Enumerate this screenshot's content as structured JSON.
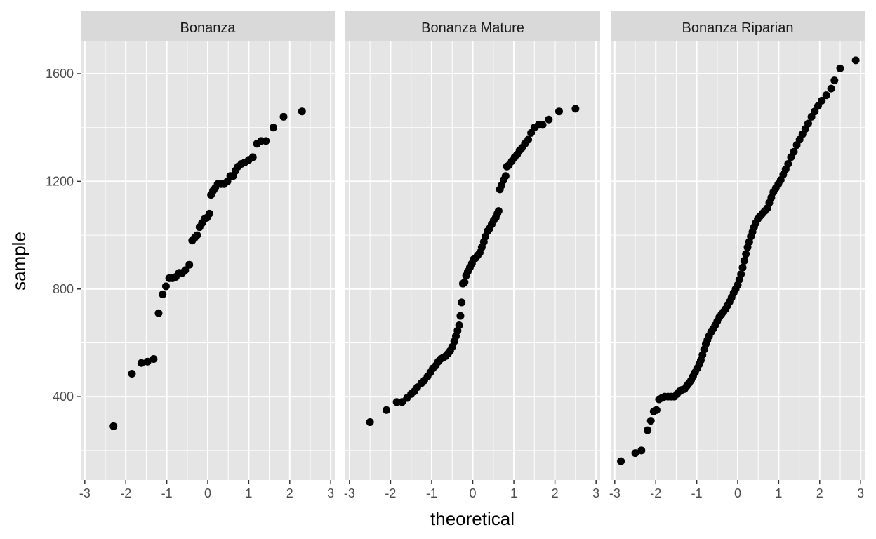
{
  "chart_data": {
    "type": "scatter",
    "xlabel": "theoretical",
    "ylabel": "sample",
    "xlim": [
      -3.1,
      3.1
    ],
    "ylim": [
      90,
      1720
    ],
    "x_ticks": [
      -3,
      -2,
      -1,
      0,
      1,
      2,
      3
    ],
    "x_tick_labels": [
      "-3",
      "-2",
      "-1",
      "0",
      "1",
      "2",
      "3"
    ],
    "y_ticks": [
      400,
      800,
      1200,
      1600
    ],
    "y_tick_labels": [
      "400",
      "800",
      "1200",
      "1600"
    ],
    "grid": true,
    "colors": {
      "panel_bg": "#e5e5e5",
      "strip_bg": "#d9d9d9",
      "grid": "#ffffff",
      "point": "#000000"
    },
    "panels": [
      {
        "title": "Bonanza",
        "points": [
          [
            -2.3,
            290
          ],
          [
            -1.85,
            485
          ],
          [
            -1.62,
            525
          ],
          [
            -1.47,
            530
          ],
          [
            -1.32,
            540
          ],
          [
            -1.2,
            710
          ],
          [
            -1.1,
            780
          ],
          [
            -1.02,
            810
          ],
          [
            -0.94,
            840
          ],
          [
            -0.86,
            840
          ],
          [
            -0.78,
            845
          ],
          [
            -0.7,
            860
          ],
          [
            -0.62,
            860
          ],
          [
            -0.55,
            870
          ],
          [
            -0.45,
            890
          ],
          [
            -0.38,
            980
          ],
          [
            -0.32,
            990
          ],
          [
            -0.26,
            1000
          ],
          [
            -0.2,
            1030
          ],
          [
            -0.14,
            1045
          ],
          [
            -0.08,
            1060
          ],
          [
            -0.02,
            1065
          ],
          [
            0.04,
            1080
          ],
          [
            0.08,
            1150
          ],
          [
            0.13,
            1165
          ],
          [
            0.18,
            1175
          ],
          [
            0.24,
            1190
          ],
          [
            0.32,
            1190
          ],
          [
            0.4,
            1190
          ],
          [
            0.48,
            1200
          ],
          [
            0.55,
            1220
          ],
          [
            0.62,
            1220
          ],
          [
            0.68,
            1240
          ],
          [
            0.74,
            1255
          ],
          [
            0.82,
            1265
          ],
          [
            0.9,
            1270
          ],
          [
            1.0,
            1280
          ],
          [
            1.1,
            1290
          ],
          [
            1.2,
            1340
          ],
          [
            1.3,
            1350
          ],
          [
            1.42,
            1350
          ],
          [
            1.6,
            1400
          ],
          [
            1.85,
            1440
          ],
          [
            2.3,
            1460
          ]
        ]
      },
      {
        "title": "Bonanza Mature",
        "points": [
          [
            -2.5,
            305
          ],
          [
            -2.1,
            350
          ],
          [
            -1.85,
            380
          ],
          [
            -1.72,
            380
          ],
          [
            -1.6,
            395
          ],
          [
            -1.5,
            410
          ],
          [
            -1.42,
            420
          ],
          [
            -1.35,
            435
          ],
          [
            -1.25,
            450
          ],
          [
            -1.18,
            460
          ],
          [
            -1.1,
            475
          ],
          [
            -1.03,
            490
          ],
          [
            -0.97,
            505
          ],
          [
            -0.9,
            515
          ],
          [
            -0.84,
            530
          ],
          [
            -0.78,
            540
          ],
          [
            -0.72,
            545
          ],
          [
            -0.66,
            550
          ],
          [
            -0.6,
            560
          ],
          [
            -0.55,
            570
          ],
          [
            -0.5,
            585
          ],
          [
            -0.45,
            605
          ],
          [
            -0.41,
            625
          ],
          [
            -0.37,
            645
          ],
          [
            -0.33,
            665
          ],
          [
            -0.3,
            700
          ],
          [
            -0.27,
            750
          ],
          [
            -0.24,
            820
          ],
          [
            -0.2,
            825
          ],
          [
            -0.16,
            850
          ],
          [
            -0.12,
            865
          ],
          [
            -0.07,
            880
          ],
          [
            -0.02,
            895
          ],
          [
            0.02,
            910
          ],
          [
            0.07,
            915
          ],
          [
            0.12,
            925
          ],
          [
            0.17,
            935
          ],
          [
            0.22,
            955
          ],
          [
            0.27,
            975
          ],
          [
            0.31,
            995
          ],
          [
            0.36,
            1015
          ],
          [
            0.41,
            1025
          ],
          [
            0.46,
            1040
          ],
          [
            0.51,
            1055
          ],
          [
            0.56,
            1065
          ],
          [
            0.6,
            1080
          ],
          [
            0.63,
            1090
          ],
          [
            0.66,
            1170
          ],
          [
            0.7,
            1185
          ],
          [
            0.75,
            1205
          ],
          [
            0.8,
            1220
          ],
          [
            0.83,
            1255
          ],
          [
            0.88,
            1260
          ],
          [
            0.95,
            1275
          ],
          [
            1.02,
            1290
          ],
          [
            1.08,
            1300
          ],
          [
            1.14,
            1315
          ],
          [
            1.2,
            1325
          ],
          [
            1.27,
            1340
          ],
          [
            1.35,
            1355
          ],
          [
            1.42,
            1380
          ],
          [
            1.5,
            1400
          ],
          [
            1.6,
            1410
          ],
          [
            1.7,
            1410
          ],
          [
            1.85,
            1430
          ],
          [
            2.1,
            1460
          ],
          [
            2.5,
            1470
          ]
        ]
      },
      {
        "title": "Bonanza Riparian",
        "points": [
          [
            -2.85,
            160
          ],
          [
            -2.5,
            190
          ],
          [
            -2.35,
            200
          ],
          [
            -2.2,
            275
          ],
          [
            -2.12,
            310
          ],
          [
            -2.05,
            345
          ],
          [
            -1.98,
            350
          ],
          [
            -1.92,
            390
          ],
          [
            -1.85,
            395
          ],
          [
            -1.78,
            400
          ],
          [
            -1.7,
            400
          ],
          [
            -1.62,
            400
          ],
          [
            -1.55,
            400
          ],
          [
            -1.48,
            410
          ],
          [
            -1.42,
            420
          ],
          [
            -1.36,
            425
          ],
          [
            -1.3,
            428
          ],
          [
            -1.24,
            440
          ],
          [
            -1.19,
            450
          ],
          [
            -1.14,
            460
          ],
          [
            -1.09,
            475
          ],
          [
            -1.04,
            490
          ],
          [
            -0.99,
            505
          ],
          [
            -0.94,
            520
          ],
          [
            -0.9,
            535
          ],
          [
            -0.86,
            555
          ],
          [
            -0.82,
            575
          ],
          [
            -0.78,
            595
          ],
          [
            -0.74,
            610
          ],
          [
            -0.7,
            625
          ],
          [
            -0.65,
            640
          ],
          [
            -0.6,
            652
          ],
          [
            -0.55,
            665
          ],
          [
            -0.5,
            680
          ],
          [
            -0.45,
            695
          ],
          [
            -0.4,
            705
          ],
          [
            -0.35,
            715
          ],
          [
            -0.3,
            725
          ],
          [
            -0.25,
            738
          ],
          [
            -0.2,
            752
          ],
          [
            -0.15,
            768
          ],
          [
            -0.1,
            785
          ],
          [
            -0.05,
            800
          ],
          [
            0.0,
            815
          ],
          [
            0.04,
            835
          ],
          [
            0.08,
            855
          ],
          [
            0.12,
            880
          ],
          [
            0.16,
            905
          ],
          [
            0.2,
            930
          ],
          [
            0.24,
            955
          ],
          [
            0.28,
            975
          ],
          [
            0.32,
            995
          ],
          [
            0.36,
            1012
          ],
          [
            0.4,
            1030
          ],
          [
            0.44,
            1045
          ],
          [
            0.49,
            1060
          ],
          [
            0.54,
            1070
          ],
          [
            0.6,
            1080
          ],
          [
            0.66,
            1090
          ],
          [
            0.72,
            1100
          ],
          [
            0.77,
            1120
          ],
          [
            0.82,
            1140
          ],
          [
            0.87,
            1160
          ],
          [
            0.93,
            1175
          ],
          [
            0.99,
            1190
          ],
          [
            1.05,
            1205
          ],
          [
            1.11,
            1225
          ],
          [
            1.17,
            1245
          ],
          [
            1.23,
            1265
          ],
          [
            1.3,
            1290
          ],
          [
            1.37,
            1310
          ],
          [
            1.44,
            1335
          ],
          [
            1.51,
            1355
          ],
          [
            1.58,
            1375
          ],
          [
            1.65,
            1395
          ],
          [
            1.72,
            1415
          ],
          [
            1.8,
            1440
          ],
          [
            1.88,
            1460
          ],
          [
            1.96,
            1480
          ],
          [
            2.05,
            1500
          ],
          [
            2.16,
            1520
          ],
          [
            2.28,
            1545
          ],
          [
            2.36,
            1575
          ],
          [
            2.5,
            1620
          ],
          [
            2.88,
            1650
          ]
        ]
      }
    ]
  }
}
